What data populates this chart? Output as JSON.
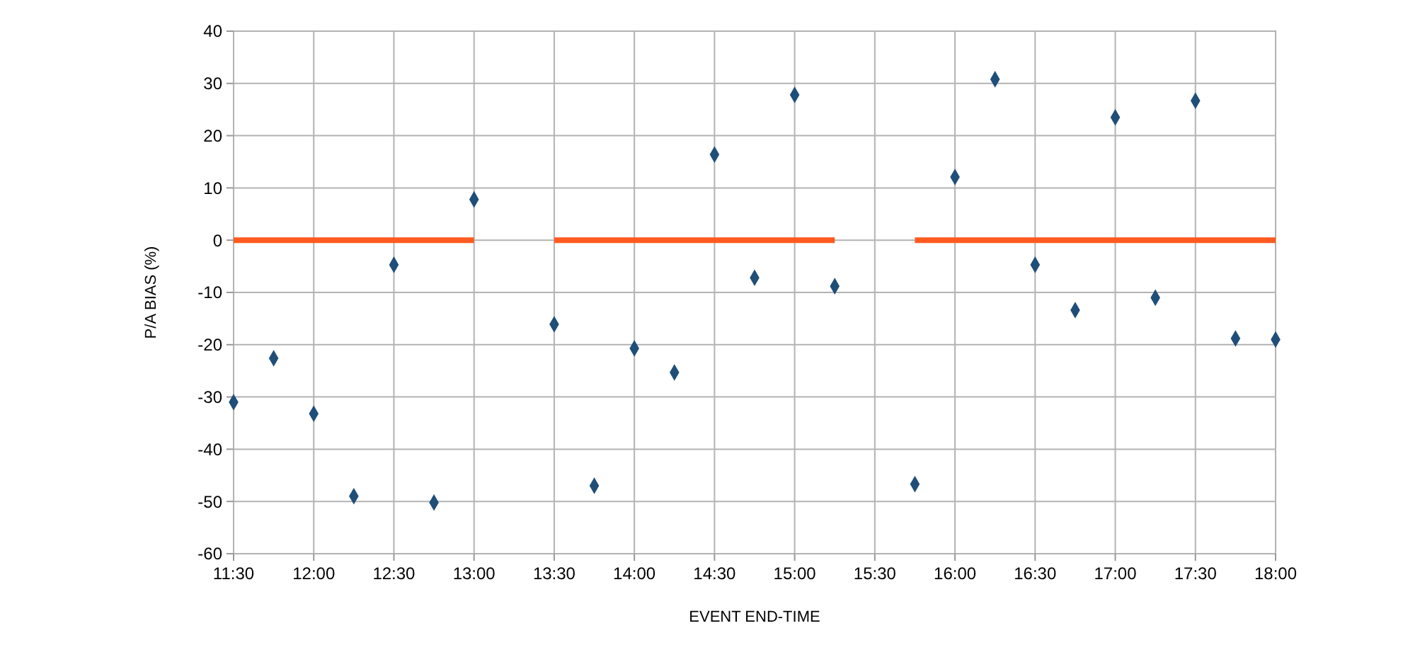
{
  "chart_data": {
    "type": "scatter",
    "xlabel": "EVENT END-TIME",
    "ylabel": "P/A BIAS (%)",
    "xlim": [
      11.5,
      18
    ],
    "xticks": [
      {
        "value": 11.5,
        "label": "11:30"
      },
      {
        "value": 12,
        "label": "12:00"
      },
      {
        "value": 12.5,
        "label": "12:30"
      },
      {
        "value": 13,
        "label": "13:00"
      },
      {
        "value": 13.5,
        "label": "13:30"
      },
      {
        "value": 14,
        "label": "14:00"
      },
      {
        "value": 14.5,
        "label": "14:30"
      },
      {
        "value": 15,
        "label": "15:00"
      },
      {
        "value": 15.5,
        "label": "15:30"
      },
      {
        "value": 16,
        "label": "16:00"
      },
      {
        "value": 16.5,
        "label": "16:30"
      },
      {
        "value": 17,
        "label": "17:00"
      },
      {
        "value": 17.5,
        "label": "17:30"
      },
      {
        "value": 18,
        "label": "18:00"
      }
    ],
    "ylim": [
      -60,
      40
    ],
    "yticks": [
      -60,
      -50,
      -40,
      -30,
      -20,
      -10,
      0,
      10,
      20,
      30,
      40
    ],
    "grid": true,
    "marker": "diamond",
    "series": [
      {
        "color": "#1f4e79",
        "x": [
          11.5,
          11.75,
          12,
          12.25,
          12.5,
          12.75,
          13,
          13.5,
          13.75,
          14,
          14.25,
          14.5,
          14.75,
          15,
          15.25,
          15.75,
          16,
          16.25,
          16.5,
          16.75,
          17,
          17.25,
          17.5,
          17.75,
          18
        ],
        "values": [
          -31,
          -22.6,
          -33.2,
          -49,
          -4.7,
          -50.2,
          7.8,
          -16.1,
          -47,
          -20.7,
          -25.3,
          16.4,
          -7.2,
          27.8,
          -8.8,
          -46.7,
          12.1,
          30.8,
          -4.7,
          -13.4,
          23.5,
          -11,
          26.7,
          -18.8,
          -19
        ]
      },
      {
        "type": "line",
        "color": "#ff5a1f",
        "marker": "none",
        "x": [
          11.5,
          13,
          13.25,
          13.5,
          15.25,
          15.5,
          15.75,
          18
        ],
        "values": [
          0,
          0,
          null,
          0,
          0,
          null,
          0,
          0
        ]
      }
    ]
  }
}
